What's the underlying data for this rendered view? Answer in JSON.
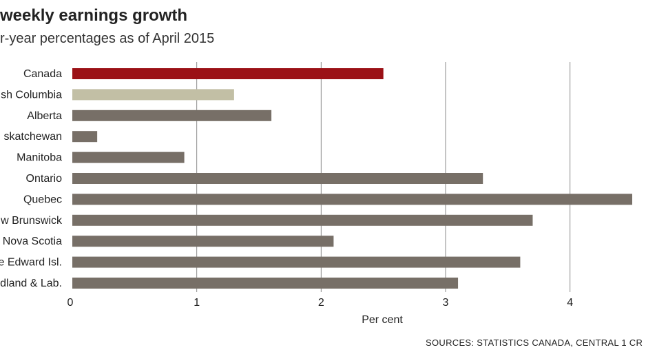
{
  "chart_data": {
    "type": "bar",
    "orientation": "horizontal",
    "title": "weekly earnings growth",
    "subtitle": "r-year percentages as of April 2015",
    "xlabel": "Per cent",
    "ylabel": "",
    "xlim": [
      0,
      4.5
    ],
    "xticks": [
      "0",
      "1",
      "2",
      "3",
      "4"
    ],
    "grid": "vertical",
    "legend": "none",
    "categories": [
      "Canada",
      "sh Columbia",
      "Alberta",
      "skatchewan",
      "Manitoba",
      "Ontario",
      "Quebec",
      "w Brunswick",
      "Nova Scotia",
      "e Edward Isl.",
      "dland & Lab."
    ],
    "values": [
      2.5,
      1.3,
      1.6,
      0.2,
      0.9,
      3.3,
      4.5,
      3.7,
      2.1,
      3.6,
      3.1
    ],
    "bar_colors": [
      "#9b1116",
      "#c2bfa5",
      "#776f67",
      "#776f67",
      "#776f67",
      "#776f67",
      "#776f67",
      "#776f67",
      "#776f67",
      "#776f67",
      "#776f67"
    ],
    "source": "SOURCES:  STATISTICS CANADA, CENTRAL 1 CR"
  }
}
